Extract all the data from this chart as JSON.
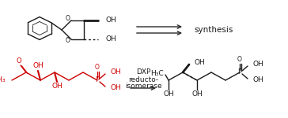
{
  "bg_color": "#ffffff",
  "arrow_color": "#2a2a2a",
  "red_color": "#cc0000",
  "black_color": "#1a1a1a",
  "synthesis_text": "synthesis",
  "enzyme_line1": "DXP",
  "enzyme_line2": "reducto-",
  "enzyme_line3": "isomerase",
  "figsize": [
    3.64,
    1.5
  ],
  "dpi": 100
}
